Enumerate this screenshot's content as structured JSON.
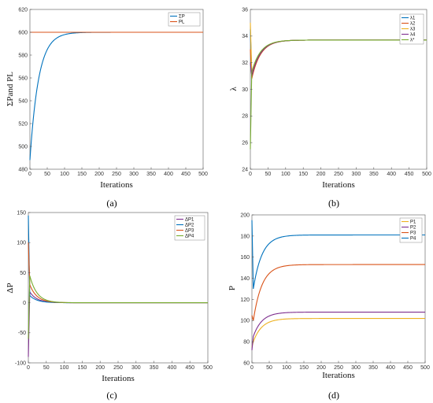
{
  "chart_data": [
    {
      "type": "line",
      "panel_label": "(a)",
      "xlabel": "Iterations",
      "ylabel": "ΣPand PL",
      "xlim": [
        0,
        500
      ],
      "ylim": [
        480,
        620
      ],
      "xticks": [
        0,
        50,
        100,
        150,
        200,
        250,
        300,
        350,
        400,
        450,
        500
      ],
      "yticks": [
        480,
        500,
        520,
        540,
        560,
        580,
        600,
        620
      ],
      "legend_position": "top-right",
      "series": [
        {
          "name": "ΣP",
          "color": "#0072BD",
          "curve": {
            "start": 488,
            "final": 600,
            "tau": 25
          }
        },
        {
          "name": "PL",
          "color": "#D95319",
          "curve": {
            "start": 600,
            "final": 600,
            "tau": 1
          }
        }
      ]
    },
    {
      "type": "line",
      "panel_label": "(b)",
      "xlabel": "Iterations",
      "ylabel": "λ",
      "xlim": [
        0,
        500
      ],
      "ylim": [
        24,
        36
      ],
      "xticks": [
        0,
        50,
        100,
        150,
        200,
        250,
        300,
        350,
        400,
        450,
        500
      ],
      "yticks": [
        24,
        26,
        28,
        30,
        32,
        34,
        36
      ],
      "legend_position": "top-right",
      "series": [
        {
          "name": "λ1",
          "color": "#0072BD",
          "curve": {
            "start": 34.5,
            "spike": 31.0,
            "final": 33.7,
            "tau": 25
          }
        },
        {
          "name": "λ2",
          "color": "#D95319",
          "curve": {
            "start": 33.0,
            "spike": 30.8,
            "final": 33.7,
            "tau": 25
          }
        },
        {
          "name": "λ3",
          "color": "#EDB120",
          "curve": {
            "start": 35.0,
            "spike": 31.2,
            "final": 33.7,
            "tau": 25
          }
        },
        {
          "name": "λ4",
          "color": "#7E2F8E",
          "curve": {
            "start": 32.0,
            "spike": 31.0,
            "final": 33.7,
            "tau": 25
          }
        },
        {
          "name": "λ*",
          "color": "#77AC30",
          "curve": {
            "start": 25.5,
            "spike": 31.3,
            "final": 33.7,
            "tau": 25
          }
        }
      ]
    },
    {
      "type": "line",
      "panel_label": "(c)",
      "xlabel": "Iterations",
      "ylabel": "ΔP",
      "xlim": [
        0,
        500
      ],
      "ylim": [
        -100,
        150
      ],
      "xticks": [
        0,
        50,
        100,
        150,
        200,
        250,
        300,
        350,
        400,
        450,
        500
      ],
      "yticks": [
        -100,
        -50,
        0,
        50,
        100,
        150
      ],
      "legend_position": "top-right",
      "series": [
        {
          "name": "ΔP1",
          "color": "#7E2F8E",
          "curve": {
            "start": -90,
            "spike": 18,
            "final": 0,
            "tau": 20
          }
        },
        {
          "name": "ΔP2",
          "color": "#0072BD",
          "curve": {
            "start": 145,
            "spike": 12,
            "final": 0,
            "tau": 20
          }
        },
        {
          "name": "ΔP3",
          "color": "#D95319",
          "curve": {
            "start": 100,
            "spike": 30,
            "final": 0,
            "tau": 20
          }
        },
        {
          "name": "ΔP4",
          "color": "#77AC30",
          "curve": {
            "start": -60,
            "spike": 45,
            "final": 0,
            "tau": 20
          }
        }
      ]
    },
    {
      "type": "line",
      "panel_label": "(d)",
      "xlabel": "Iterations",
      "ylabel": "P",
      "xlim": [
        0,
        500
      ],
      "ylim": [
        60,
        200
      ],
      "xticks": [
        0,
        50,
        100,
        150,
        200,
        250,
        300,
        350,
        400,
        450,
        500
      ],
      "yticks": [
        60,
        80,
        100,
        120,
        140,
        160,
        180,
        200
      ],
      "legend_position": "top-right",
      "series": [
        {
          "name": "P1",
          "color": "#EDB120",
          "curve": {
            "start": 75,
            "spike": 80,
            "final": 102,
            "tau": 25
          }
        },
        {
          "name": "P2",
          "color": "#7E2F8E",
          "curve": {
            "start": 72,
            "spike": 85,
            "final": 108,
            "tau": 25
          }
        },
        {
          "name": "P3",
          "color": "#D95319",
          "curve": {
            "start": 105,
            "spike": 100,
            "final": 153,
            "tau": 25
          }
        },
        {
          "name": "P4",
          "color": "#0072BD",
          "curve": {
            "start": 195,
            "spike": 130,
            "final": 181,
            "tau": 25
          }
        }
      ]
    }
  ]
}
